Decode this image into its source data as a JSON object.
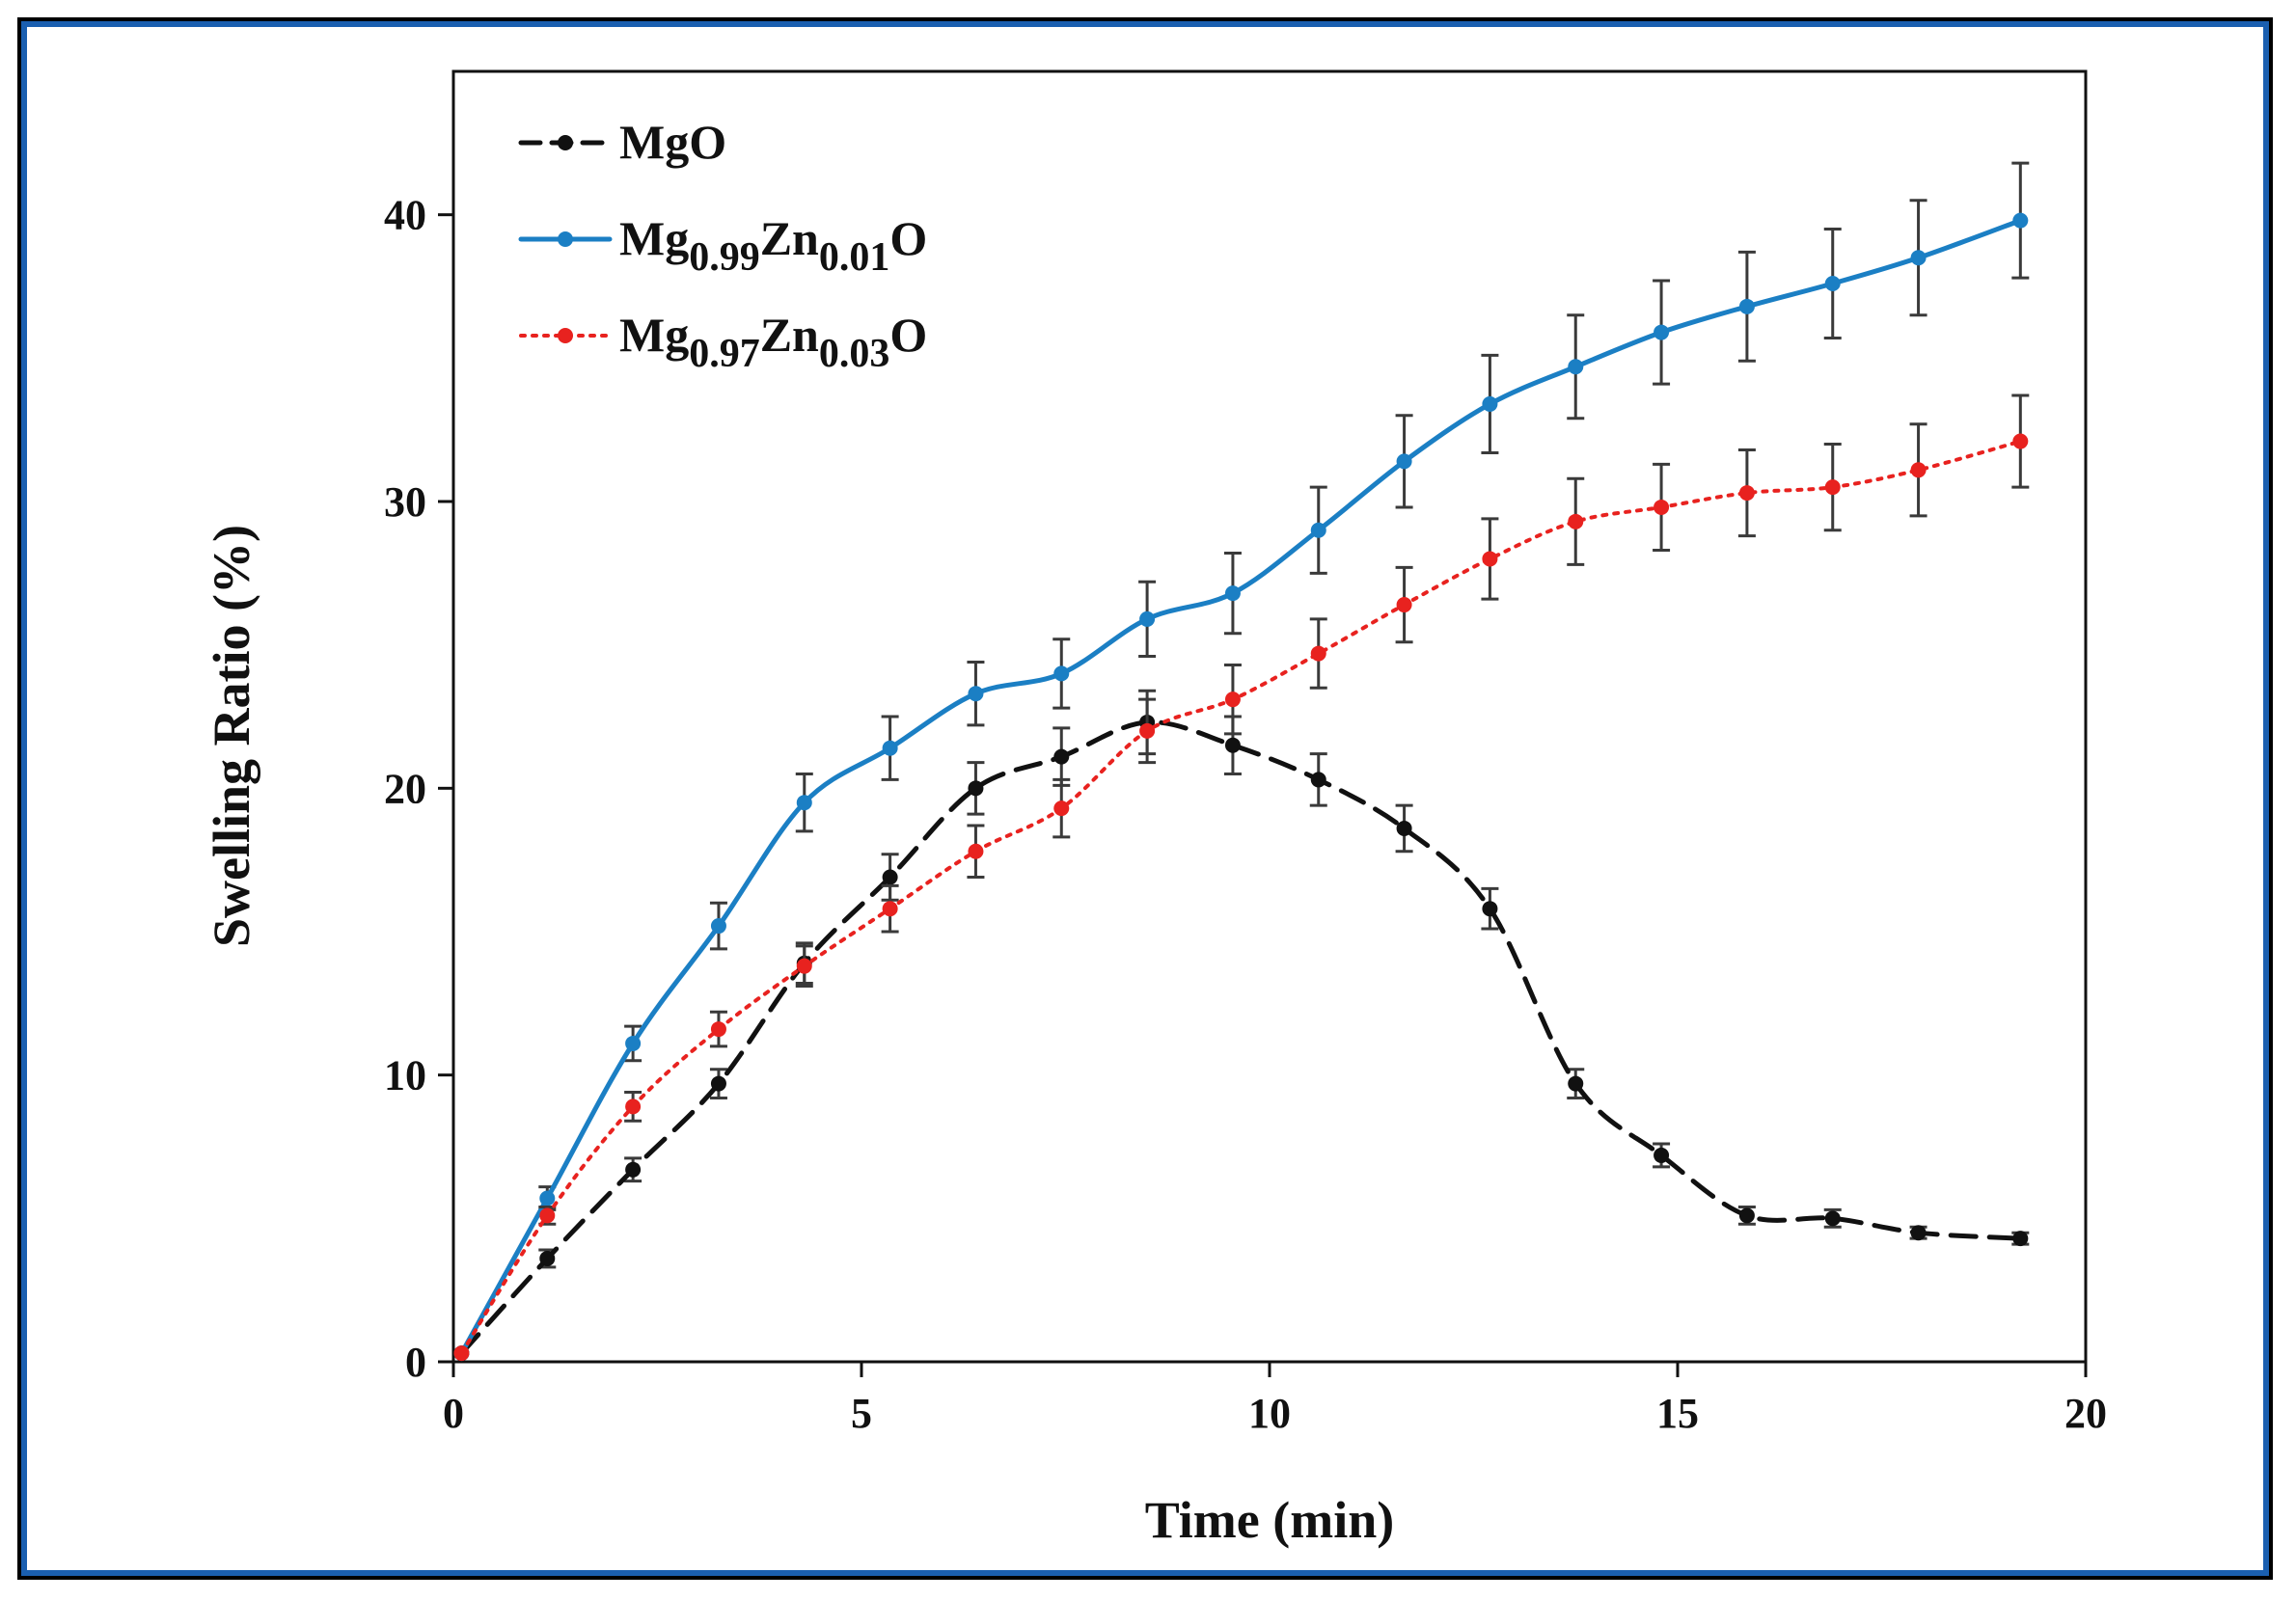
{
  "chart_data": {
    "type": "line",
    "title": "",
    "xlabel": "Time (min)",
    "ylabel": "Swelling Ratio (%)",
    "xlim": [
      0,
      20
    ],
    "ylim": [
      0,
      45
    ],
    "xticks": [
      0,
      5,
      10,
      15,
      20
    ],
    "yticks": [
      0,
      10,
      20,
      30,
      40
    ],
    "grid": false,
    "legend_position": "top-left",
    "x": [
      0.1,
      1.15,
      2.2,
      3.25,
      4.3,
      5.35,
      6.4,
      7.45,
      8.5,
      9.55,
      10.6,
      11.65,
      12.7,
      13.75,
      14.8,
      15.85,
      16.9,
      17.95,
      19.2
    ],
    "series": [
      {
        "name": "MgO",
        "legend_base": "MgO",
        "legend_parts": [
          {
            "t": "MgO",
            "sub": false
          }
        ],
        "color": "#111111",
        "style": "dashed",
        "values": [
          0.3,
          3.6,
          6.7,
          9.7,
          13.9,
          16.9,
          20.0,
          21.1,
          22.3,
          21.5,
          20.3,
          18.6,
          15.8,
          9.7,
          7.2,
          5.1,
          5.0,
          4.5,
          4.3
        ],
        "errors": [
          0.0,
          0.3,
          0.4,
          0.5,
          0.7,
          0.8,
          0.9,
          1.0,
          1.1,
          1.0,
          0.9,
          0.8,
          0.7,
          0.5,
          0.4,
          0.3,
          0.3,
          0.2,
          0.2
        ]
      },
      {
        "name": "Mg0.99Zn0.01O",
        "legend_base": "Mg",
        "legend_parts": [
          {
            "t": "Mg",
            "sub": false
          },
          {
            "t": "0.99",
            "sub": true
          },
          {
            "t": "Zn",
            "sub": false
          },
          {
            "t": "0.01",
            "sub": true
          },
          {
            "t": "O",
            "sub": false
          }
        ],
        "color": "#1b7fc4",
        "style": "solid",
        "values": [
          0.3,
          5.7,
          11.1,
          15.2,
          19.5,
          21.4,
          23.3,
          24.0,
          25.9,
          26.8,
          29.0,
          31.4,
          33.4,
          34.7,
          35.9,
          36.8,
          37.6,
          38.5,
          39.8
        ],
        "errors": [
          0.0,
          0.4,
          0.6,
          0.8,
          1.0,
          1.1,
          1.1,
          1.2,
          1.3,
          1.4,
          1.5,
          1.6,
          1.7,
          1.8,
          1.8,
          1.9,
          1.9,
          2.0,
          2.0
        ]
      },
      {
        "name": "Mg0.97Zn0.03O",
        "legend_base": "Mg",
        "legend_parts": [
          {
            "t": "Mg",
            "sub": false
          },
          {
            "t": "0.97",
            "sub": true
          },
          {
            "t": "Zn",
            "sub": false
          },
          {
            "t": "0.03",
            "sub": true
          },
          {
            "t": "O",
            "sub": false
          }
        ],
        "color": "#e8221f",
        "style": "dotted",
        "values": [
          0.3,
          5.1,
          8.9,
          11.6,
          13.8,
          15.8,
          17.8,
          19.3,
          22.0,
          23.1,
          24.7,
          26.4,
          28.0,
          29.3,
          29.8,
          30.3,
          30.5,
          31.1,
          32.1
        ],
        "errors": [
          0.0,
          0.3,
          0.5,
          0.6,
          0.7,
          0.8,
          0.9,
          1.0,
          1.1,
          1.2,
          1.2,
          1.3,
          1.4,
          1.5,
          1.5,
          1.5,
          1.5,
          1.6,
          1.6
        ]
      }
    ]
  }
}
